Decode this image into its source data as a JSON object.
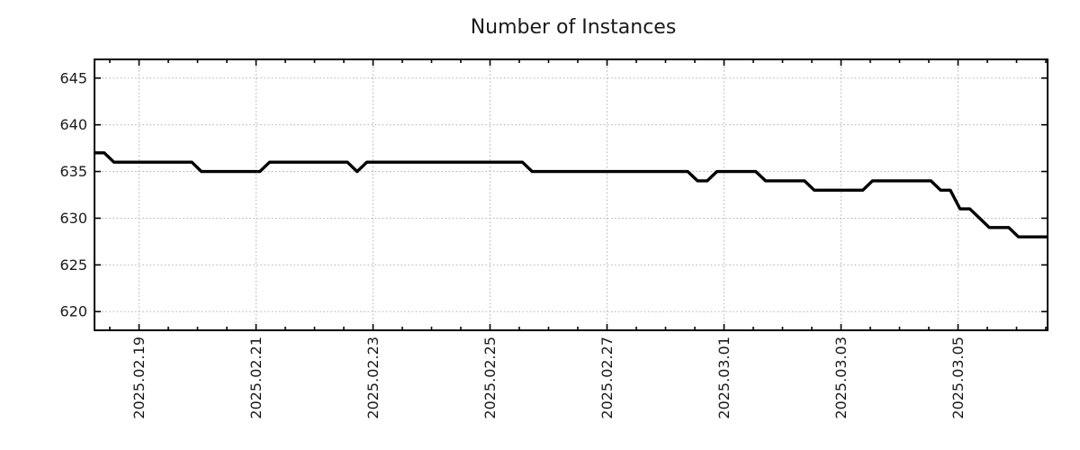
{
  "chart_data": {
    "type": "line",
    "title": "Number of Instances",
    "xlabel": "",
    "ylabel": "",
    "legend": "none",
    "grid": "dotted major gridlines, both axes",
    "line_color": "#000000",
    "grid_color": "#b0b0b0",
    "axis_color": "#000000",
    "text_color": "#1a1a1a",
    "ylim": [
      618,
      647
    ],
    "y_ticks": [
      "645",
      "640",
      "635",
      "630",
      "625",
      "620"
    ],
    "y_tick_values": [
      645,
      640,
      635,
      630,
      625,
      620
    ],
    "x_tick_labels": [
      "2025.02.19",
      "2025.02.21",
      "2025.02.23",
      "2025.02.25",
      "2025.02.27",
      "2025.03.01",
      "2025.03.03",
      "2025.03.05"
    ],
    "x_major_interval_days": 2,
    "x_minor_interval_days": 0.5,
    "xlim": [
      "2025-02-18 ~06:00",
      "2025-03-06 ~12:00"
    ],
    "series": [
      {
        "name": "instances",
        "x_start": "2025-02-18 ~06:00",
        "x_step_hours": 4,
        "values": [
          637,
          637,
          636,
          636,
          636,
          636,
          636,
          636,
          636,
          636,
          636,
          635,
          635,
          635,
          635,
          635,
          635,
          635,
          636,
          636,
          636,
          636,
          636,
          636,
          636,
          636,
          636,
          635,
          636,
          636,
          636,
          636,
          636,
          636,
          636,
          636,
          636,
          636,
          636,
          636,
          636,
          636,
          636,
          636,
          636,
          635,
          635,
          635,
          635,
          635,
          635,
          635,
          635,
          635,
          635,
          635,
          635,
          635,
          635,
          635,
          635,
          635,
          634,
          634,
          635,
          635,
          635,
          635,
          635,
          634,
          634,
          634,
          634,
          634,
          633,
          633,
          633,
          633,
          633,
          633,
          634,
          634,
          634,
          634,
          634,
          634,
          634,
          633,
          633,
          631,
          631,
          630,
          629,
          629,
          629,
          628,
          628,
          628,
          628
        ]
      }
    ]
  }
}
